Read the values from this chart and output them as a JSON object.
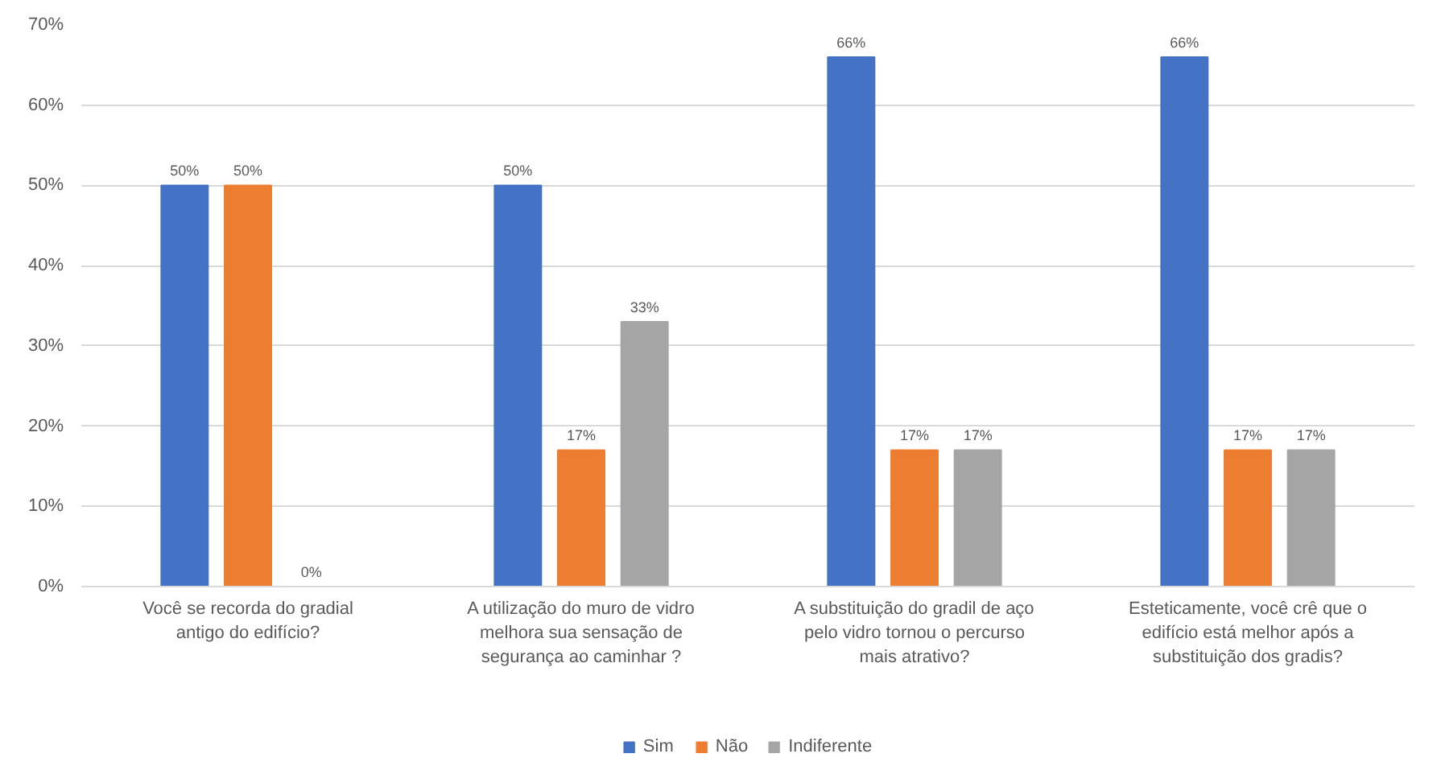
{
  "chart_data": {
    "type": "bar",
    "categories": [
      "Você se recorda do gradial\nantigo do edifício?",
      "A utilização do muro de vidro\nmelhora sua sensação de\nsegurança ao caminhar ?",
      "A substituição do gradil de aço\npelo vidro tornou o percurso\nmais atrativo?",
      "Esteticamente, você crê que o\nedifício está melhor após a\nsubstituição dos gradis?"
    ],
    "series": [
      {
        "name": "Sim",
        "color": "#4472c4",
        "values": [
          50,
          50,
          66,
          66
        ],
        "value_labels": [
          "50%",
          "50%",
          "66%",
          "66%"
        ]
      },
      {
        "name": "Não",
        "color": "#ed7d31",
        "values": [
          50,
          17,
          17,
          17
        ],
        "value_labels": [
          "50%",
          "17%",
          "17%",
          "17%"
        ]
      },
      {
        "name": "Indiferente",
        "color": "#a5a5a5",
        "values": [
          0,
          33,
          17,
          17
        ],
        "value_labels": [
          "0%",
          "33%",
          "17%",
          "17%"
        ]
      }
    ],
    "ylim": [
      0,
      70
    ],
    "yticks": [
      {
        "value": 0,
        "label": "0%"
      },
      {
        "value": 10,
        "label": "10%"
      },
      {
        "value": 20,
        "label": "20%"
      },
      {
        "value": 30,
        "label": "30%"
      },
      {
        "value": 40,
        "label": "40%"
      },
      {
        "value": 50,
        "label": "50%"
      },
      {
        "value": 60,
        "label": "60%"
      },
      {
        "value": 70,
        "label": "70%"
      }
    ],
    "grid": "y",
    "legend": "bottom"
  }
}
